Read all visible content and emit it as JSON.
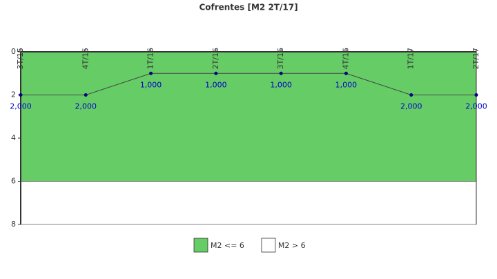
{
  "chart_data": {
    "type": "line",
    "title": "Cofrentes [M2 2T/17]",
    "categories": [
      "3T/15",
      "4T/15",
      "1T/16",
      "2T/16",
      "3T/16",
      "4T/16",
      "1T/17",
      "2T/17"
    ],
    "series": [
      {
        "color": "#000080",
        "values": [
          2,
          2,
          1,
          1,
          1,
          1,
          2,
          2
        ],
        "value_labels": [
          "2,000",
          "2,000",
          "1,000",
          "1,000",
          "1,000",
          "1,000",
          "2,000",
          "2,000"
        ]
      }
    ],
    "ylim": [
      0,
      8
    ],
    "yticks": [
      0,
      2,
      4,
      6,
      8
    ],
    "y_inverted": true,
    "bands": [
      {
        "name": "M2 <= 6",
        "color": "#66cc66",
        "from": 0,
        "to": 6
      },
      {
        "name": "M2 > 6",
        "color": "#ffffff",
        "from": 6,
        "to": 8
      }
    ]
  }
}
